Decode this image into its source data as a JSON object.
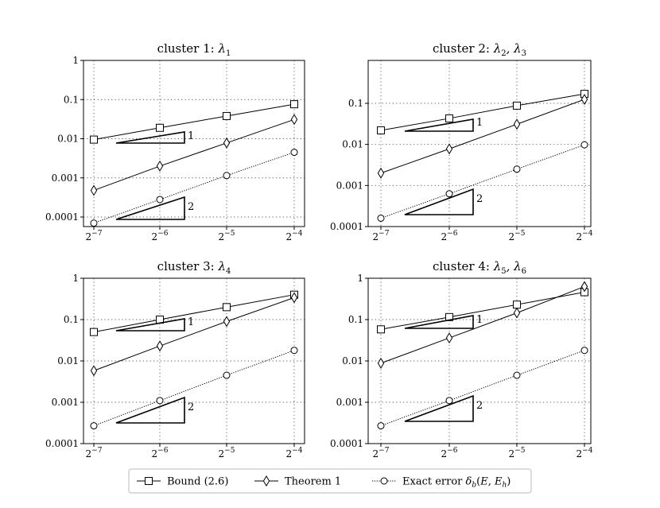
{
  "legend": [
    {
      "label": "Bound (2.6)",
      "marker": "square",
      "style": "solid"
    },
    {
      "label": "Theorem 1",
      "marker": "diamond",
      "style": "solid"
    },
    {
      "label": "Exact error δb(E, Eh)",
      "marker": "circle",
      "style": "dotted"
    }
  ],
  "chart_data": [
    {
      "type": "line",
      "title": "cluster 1: λ1",
      "x": [
        0.0078125,
        0.015625,
        0.03125,
        0.0625
      ],
      "x_tick_labels": [
        "2−7",
        "2−6",
        "2−5",
        "2−4"
      ],
      "xscale": "log2",
      "yscale": "log",
      "ylim": [
        5e-05,
        1
      ],
      "y_tick_values": [
        0.0001,
        0.001,
        0.01,
        0.1,
        1
      ],
      "y_tick_labels": [
        "0.0001",
        "0.001",
        "0.01",
        "0.1",
        "1"
      ],
      "grid": true,
      "series": [
        {
          "name": "Bound (2.6)",
          "values": [
            0.0095,
            0.019,
            0.038,
            0.076
          ]
        },
        {
          "name": "Theorem 1",
          "values": [
            0.00048,
            0.002,
            0.0078,
            0.031
          ]
        },
        {
          "name": "Exact error δb(E, Eh)",
          "values": [
            7e-05,
            0.00028,
            0.00115,
            0.0045
          ]
        }
      ],
      "slope_triangles": [
        {
          "label": "1",
          "slope": 1
        },
        {
          "label": "2",
          "slope": 2
        }
      ]
    },
    {
      "type": "line",
      "title": "cluster 2: λ2, λ3",
      "x": [
        0.0078125,
        0.015625,
        0.03125,
        0.0625
      ],
      "x_tick_labels": [
        "2−7",
        "2−6",
        "2−5",
        "2−4"
      ],
      "xscale": "log2",
      "yscale": "log",
      "ylim": [
        0.0001,
        0.5
      ],
      "y_tick_values": [
        0.0001,
        0.001,
        0.01,
        0.1
      ],
      "y_tick_labels": [
        "0.0001",
        "0.001",
        "0.01",
        "0.1"
      ],
      "grid": true,
      "series": [
        {
          "name": "Bound (2.6)",
          "values": [
            0.022,
            0.043,
            0.088,
            0.17
          ]
        },
        {
          "name": "Theorem 1",
          "values": [
            0.002,
            0.0078,
            0.031,
            0.125
          ]
        },
        {
          "name": "Exact error δb(E, Eh)",
          "values": [
            0.00016,
            0.00063,
            0.0025,
            0.0098
          ]
        }
      ],
      "slope_triangles": [
        {
          "label": "1",
          "slope": 1
        },
        {
          "label": "2",
          "slope": 2
        }
      ]
    },
    {
      "type": "line",
      "title": "cluster 3: λ4",
      "x": [
        0.0078125,
        0.015625,
        0.03125,
        0.0625
      ],
      "x_tick_labels": [
        "2−7",
        "2−6",
        "2−5",
        "2−4"
      ],
      "xscale": "log2",
      "yscale": "log",
      "ylim": [
        0.0001,
        1
      ],
      "y_tick_values": [
        0.0001,
        0.001,
        0.01,
        0.1,
        1
      ],
      "y_tick_labels": [
        "0.0001",
        "0.001",
        "0.01",
        "0.1",
        "1"
      ],
      "grid": true,
      "series": [
        {
          "name": "Bound (2.6)",
          "values": [
            0.05,
            0.1,
            0.2,
            0.4
          ]
        },
        {
          "name": "Theorem 1",
          "values": [
            0.0058,
            0.023,
            0.09,
            0.34
          ]
        },
        {
          "name": "Exact error δb(E, Eh)",
          "values": [
            0.00027,
            0.0011,
            0.0045,
            0.018
          ]
        }
      ],
      "slope_triangles": [
        {
          "label": "1",
          "slope": 1
        },
        {
          "label": "2",
          "slope": 2
        }
      ]
    },
    {
      "type": "line",
      "title": "cluster 4: λ5, λ6",
      "x": [
        0.0078125,
        0.015625,
        0.03125,
        0.0625
      ],
      "x_tick_labels": [
        "2−7",
        "2−6",
        "2−5",
        "2−4"
      ],
      "xscale": "log2",
      "yscale": "log",
      "ylim": [
        0.0001,
        1
      ],
      "y_tick_values": [
        0.0001,
        0.001,
        0.01,
        0.1,
        1
      ],
      "y_tick_labels": [
        "0.0001",
        "0.001",
        "0.01",
        "0.1",
        "1"
      ],
      "grid": true,
      "series": [
        {
          "name": "Bound (2.6)",
          "values": [
            0.058,
            0.115,
            0.23,
            0.46
          ]
        },
        {
          "name": "Theorem 1",
          "values": [
            0.0088,
            0.036,
            0.145,
            0.63
          ]
        },
        {
          "name": "Exact error δb(E, Eh)",
          "values": [
            0.00027,
            0.0011,
            0.0045,
            0.018
          ]
        }
      ],
      "slope_triangles": [
        {
          "label": "1",
          "slope": 1
        },
        {
          "label": "2",
          "slope": 2
        }
      ]
    }
  ]
}
